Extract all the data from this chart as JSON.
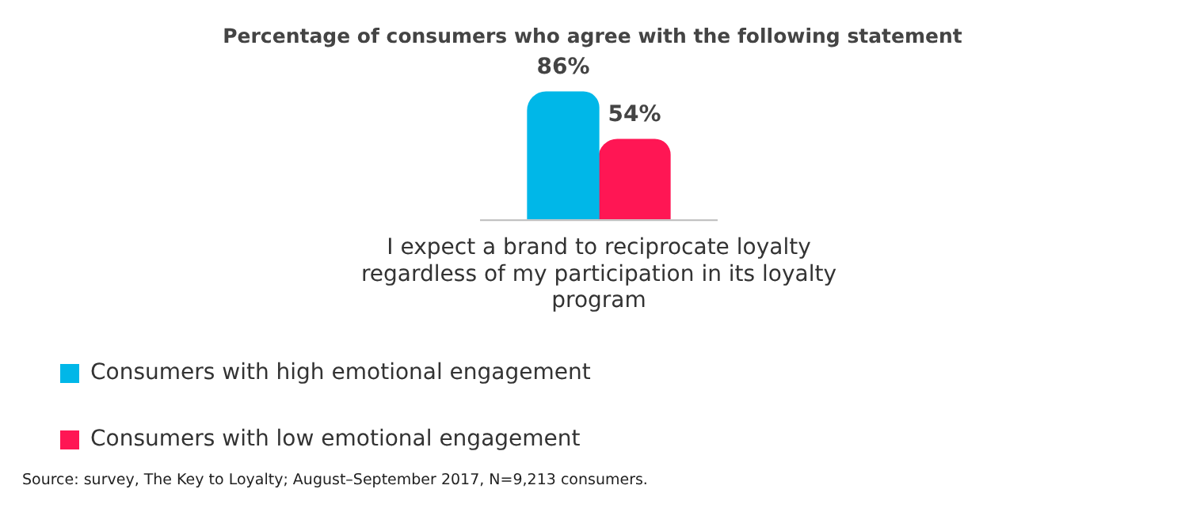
{
  "chart_data": {
    "type": "bar",
    "title": "Percentage of consumers who agree with the following statement",
    "categories": [
      "I expect a brand to reciprocate loyalty regardless of my participation in its loyalty program"
    ],
    "series": [
      {
        "name": "Consumers with high emotional engagement",
        "color": "#00b7e8",
        "values": [
          86
        ],
        "value_labels": [
          "86%"
        ]
      },
      {
        "name": "Consumers with low emotional engagement",
        "color": "#ff1654",
        "values": [
          54
        ],
        "value_labels": [
          "54%"
        ]
      }
    ],
    "relative": false,
    "grid": false,
    "legend": "bottom left",
    "annotations": [
      "Source: survey, The Key to Loyalty; August–September 2017, N=9,213 consumers."
    ]
  }
}
